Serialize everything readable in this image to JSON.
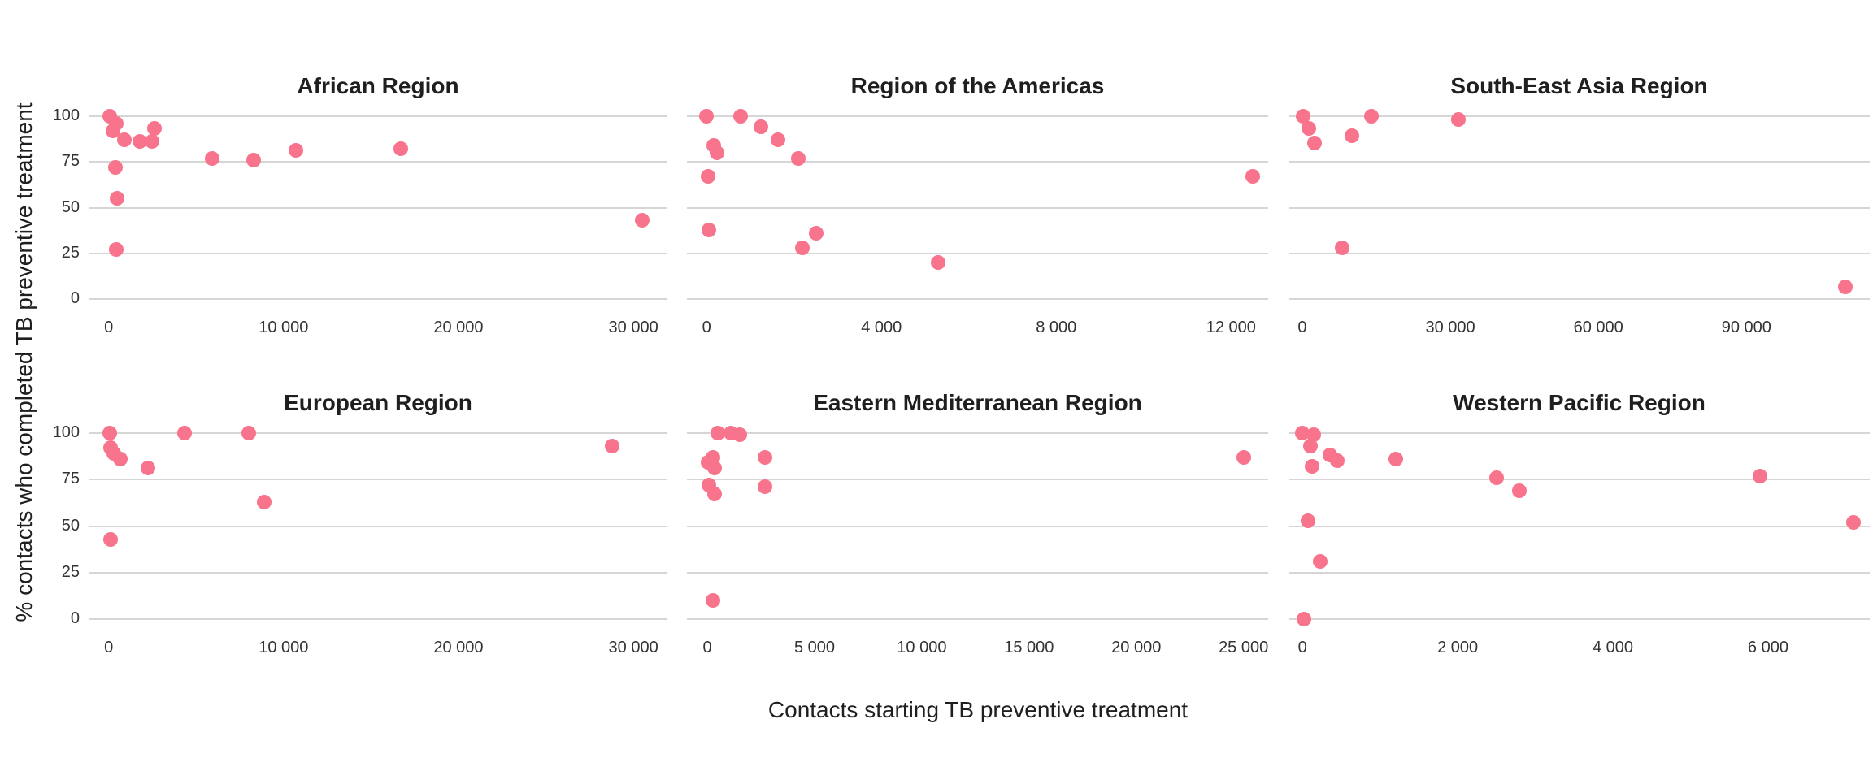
{
  "figure": {
    "x_axis_label": "Contacts starting TB preventive treatment",
    "y_axis_label": "% contacts who completed TB preventive treatment",
    "point_color": "#F8738C",
    "gridline_color": "#D6D6D6",
    "y_ticks": [
      {
        "value": 100,
        "label": "100"
      },
      {
        "value": 75,
        "label": "75"
      },
      {
        "value": 50,
        "label": "50"
      },
      {
        "value": 25,
        "label": "25"
      },
      {
        "value": 0,
        "label": "0"
      }
    ]
  },
  "chart_data": [
    {
      "type": "scatter",
      "title": "African Region",
      "row": 0,
      "col": 0,
      "xlabel": "Contacts starting TB preventive treatment",
      "ylabel": "% contacts who completed TB preventive treatment",
      "xlim": [
        -1100,
        31900
      ],
      "ylim": [
        -6,
        106
      ],
      "grid": "horizontal",
      "x_ticks": [
        {
          "value": 0,
          "label": "0"
        },
        {
          "value": 10000,
          "label": "10 000"
        },
        {
          "value": 20000,
          "label": "20 000"
        },
        {
          "value": 30000,
          "label": "30 000"
        }
      ],
      "points": [
        [
          50,
          100
        ],
        [
          420,
          96
        ],
        [
          230,
          92
        ],
        [
          880,
          87
        ],
        [
          1800,
          86
        ],
        [
          2500,
          86
        ],
        [
          2600,
          93
        ],
        [
          5900,
          77
        ],
        [
          8300,
          76
        ],
        [
          10700,
          81
        ],
        [
          16700,
          82
        ],
        [
          30500,
          43
        ],
        [
          370,
          72
        ],
        [
          465,
          55
        ],
        [
          420,
          27
        ]
      ]
    },
    {
      "type": "scatter",
      "title": "Region of the Americas",
      "row": 0,
      "col": 1,
      "xlabel": "Contacts starting TB preventive treatment",
      "ylabel": "% contacts who completed TB preventive treatment",
      "xlim": [
        -450,
        12850
      ],
      "ylim": [
        -6,
        106
      ],
      "grid": "horizontal",
      "x_ticks": [
        {
          "value": 0,
          "label": "0"
        },
        {
          "value": 4000,
          "label": "4 000"
        },
        {
          "value": 8000,
          "label": "8 000"
        },
        {
          "value": 12000,
          "label": "12 000"
        }
      ],
      "points": [
        [
          0,
          100
        ],
        [
          780,
          100
        ],
        [
          1240,
          94
        ],
        [
          1640,
          87
        ],
        [
          160,
          84
        ],
        [
          235,
          80
        ],
        [
          2100,
          77
        ],
        [
          35,
          67
        ],
        [
          12500,
          67
        ],
        [
          55,
          38
        ],
        [
          2500,
          36
        ],
        [
          2200,
          28
        ],
        [
          5300,
          20
        ]
      ]
    },
    {
      "type": "scatter",
      "title": "South-East Asia Region",
      "row": 0,
      "col": 2,
      "xlabel": "Contacts starting TB preventive treatment",
      "ylabel": "% contacts who completed TB preventive treatment",
      "xlim": [
        -2800,
        114990
      ],
      "ylim": [
        -6,
        106
      ],
      "grid": "horizontal",
      "x_ticks": [
        {
          "value": 0,
          "label": "0"
        },
        {
          "value": 30000,
          "label": "30 000"
        },
        {
          "value": 60000,
          "label": "60 000"
        },
        {
          "value": 90000,
          "label": "90 000"
        }
      ],
      "points": [
        [
          200,
          100
        ],
        [
          1400,
          93
        ],
        [
          2500,
          85
        ],
        [
          10000,
          89
        ],
        [
          14000,
          100
        ],
        [
          31600,
          98
        ],
        [
          8000,
          28
        ],
        [
          110000,
          7
        ]
      ]
    },
    {
      "type": "scatter",
      "title": "European Region",
      "row": 1,
      "col": 0,
      "xlabel": "Contacts starting TB preventive treatment",
      "ylabel": "% contacts who completed TB preventive treatment",
      "xlim": [
        -1100,
        31900
      ],
      "ylim": [
        -6,
        106
      ],
      "grid": "horizontal",
      "x_ticks": [
        {
          "value": 0,
          "label": "0"
        },
        {
          "value": 10000,
          "label": "10 000"
        },
        {
          "value": 20000,
          "label": "20 000"
        },
        {
          "value": 30000,
          "label": "30 000"
        }
      ],
      "points": [
        [
          50,
          100
        ],
        [
          90,
          92
        ],
        [
          280,
          89
        ],
        [
          650,
          86
        ],
        [
          2230,
          81
        ],
        [
          4320,
          100
        ],
        [
          8030,
          100
        ],
        [
          8900,
          63
        ],
        [
          90,
          43
        ],
        [
          28800,
          93
        ]
      ]
    },
    {
      "type": "scatter",
      "title": "Eastern Mediterranean Region",
      "row": 1,
      "col": 1,
      "xlabel": "Contacts starting TB preventive treatment",
      "ylabel": "% contacts who completed TB preventive treatment",
      "xlim": [
        -950,
        26150
      ],
      "ylim": [
        -6,
        106
      ],
      "grid": "horizontal",
      "x_ticks": [
        {
          "value": 0,
          "label": "0"
        },
        {
          "value": 5000,
          "label": "5 000"
        },
        {
          "value": 10000,
          "label": "10 000"
        },
        {
          "value": 15000,
          "label": "15 000"
        },
        {
          "value": 20000,
          "label": "20 000"
        },
        {
          "value": 25000,
          "label": "25 000"
        }
      ],
      "points": [
        [
          500,
          100
        ],
        [
          1100,
          100
        ],
        [
          1500,
          99
        ],
        [
          250,
          87
        ],
        [
          30,
          84
        ],
        [
          320,
          81
        ],
        [
          60,
          72
        ],
        [
          320,
          67
        ],
        [
          2700,
          87
        ],
        [
          2700,
          71
        ],
        [
          270,
          10
        ],
        [
          25000,
          87
        ]
      ]
    },
    {
      "type": "scatter",
      "title": "Western Pacific Region",
      "row": 1,
      "col": 2,
      "xlabel": "Contacts starting TB preventive treatment",
      "ylabel": "% contacts who completed TB preventive treatment",
      "xlim": [
        -180,
        7310
      ],
      "ylim": [
        -6,
        106
      ],
      "grid": "horizontal",
      "x_ticks": [
        {
          "value": 0,
          "label": "0"
        },
        {
          "value": 2000,
          "label": "2 000"
        },
        {
          "value": 4000,
          "label": "4 000"
        },
        {
          "value": 6000,
          "label": "6 000"
        }
      ],
      "points": [
        [
          0,
          100
        ],
        [
          140,
          99
        ],
        [
          100,
          93
        ],
        [
          350,
          88
        ],
        [
          450,
          85
        ],
        [
          120,
          82
        ],
        [
          1200,
          86
        ],
        [
          2500,
          76
        ],
        [
          2800,
          69
        ],
        [
          5900,
          77
        ],
        [
          7100,
          52
        ],
        [
          70,
          53
        ],
        [
          230,
          31
        ],
        [
          20,
          0
        ]
      ]
    }
  ]
}
